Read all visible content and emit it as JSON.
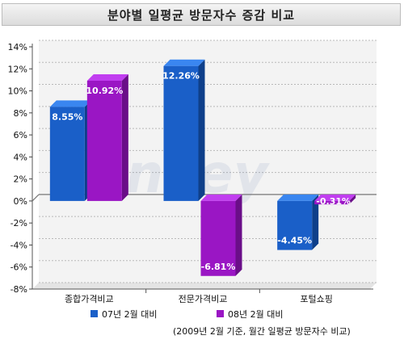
{
  "title": "분야별 일평균 방문자수 증감 비교",
  "watermark": "Rankey",
  "note": "(2009년 2월 기준, 월간 일평균 방문자수 비교)",
  "colors": {
    "series1": "#1a5fc8",
    "series1_top": "#3a86f0",
    "series1_side": "#0e3f8a",
    "series2": "#9a16c4",
    "series2_top": "#c13ef0",
    "series2_side": "#6a0e88"
  },
  "chart_data": {
    "type": "bar",
    "categories": [
      "종합가격비교",
      "전문가격비교",
      "포털쇼핑"
    ],
    "series": [
      {
        "name": "07년 2월 대비",
        "values": [
          8.55,
          12.26,
          -4.45
        ],
        "labels": [
          "8.55%",
          "12.26%",
          "-4.45%"
        ]
      },
      {
        "name": "08년 2월 대비",
        "values": [
          10.92,
          -6.81,
          -0.31
        ],
        "labels": [
          "10.92%",
          "-6.81%",
          "-0.31%"
        ]
      }
    ],
    "ylim": [
      -8,
      14
    ],
    "yticks": [
      14,
      12,
      10,
      8,
      6,
      4,
      2,
      0,
      -2,
      -4,
      -6,
      -8
    ],
    "ytick_labels": [
      "14%",
      "12%",
      "10%",
      "8%",
      "6%",
      "4%",
      "2%",
      "0%",
      "-2%",
      "-4%",
      "-6%",
      "-8%"
    ],
    "grid": true,
    "legend_position": "bottom"
  }
}
